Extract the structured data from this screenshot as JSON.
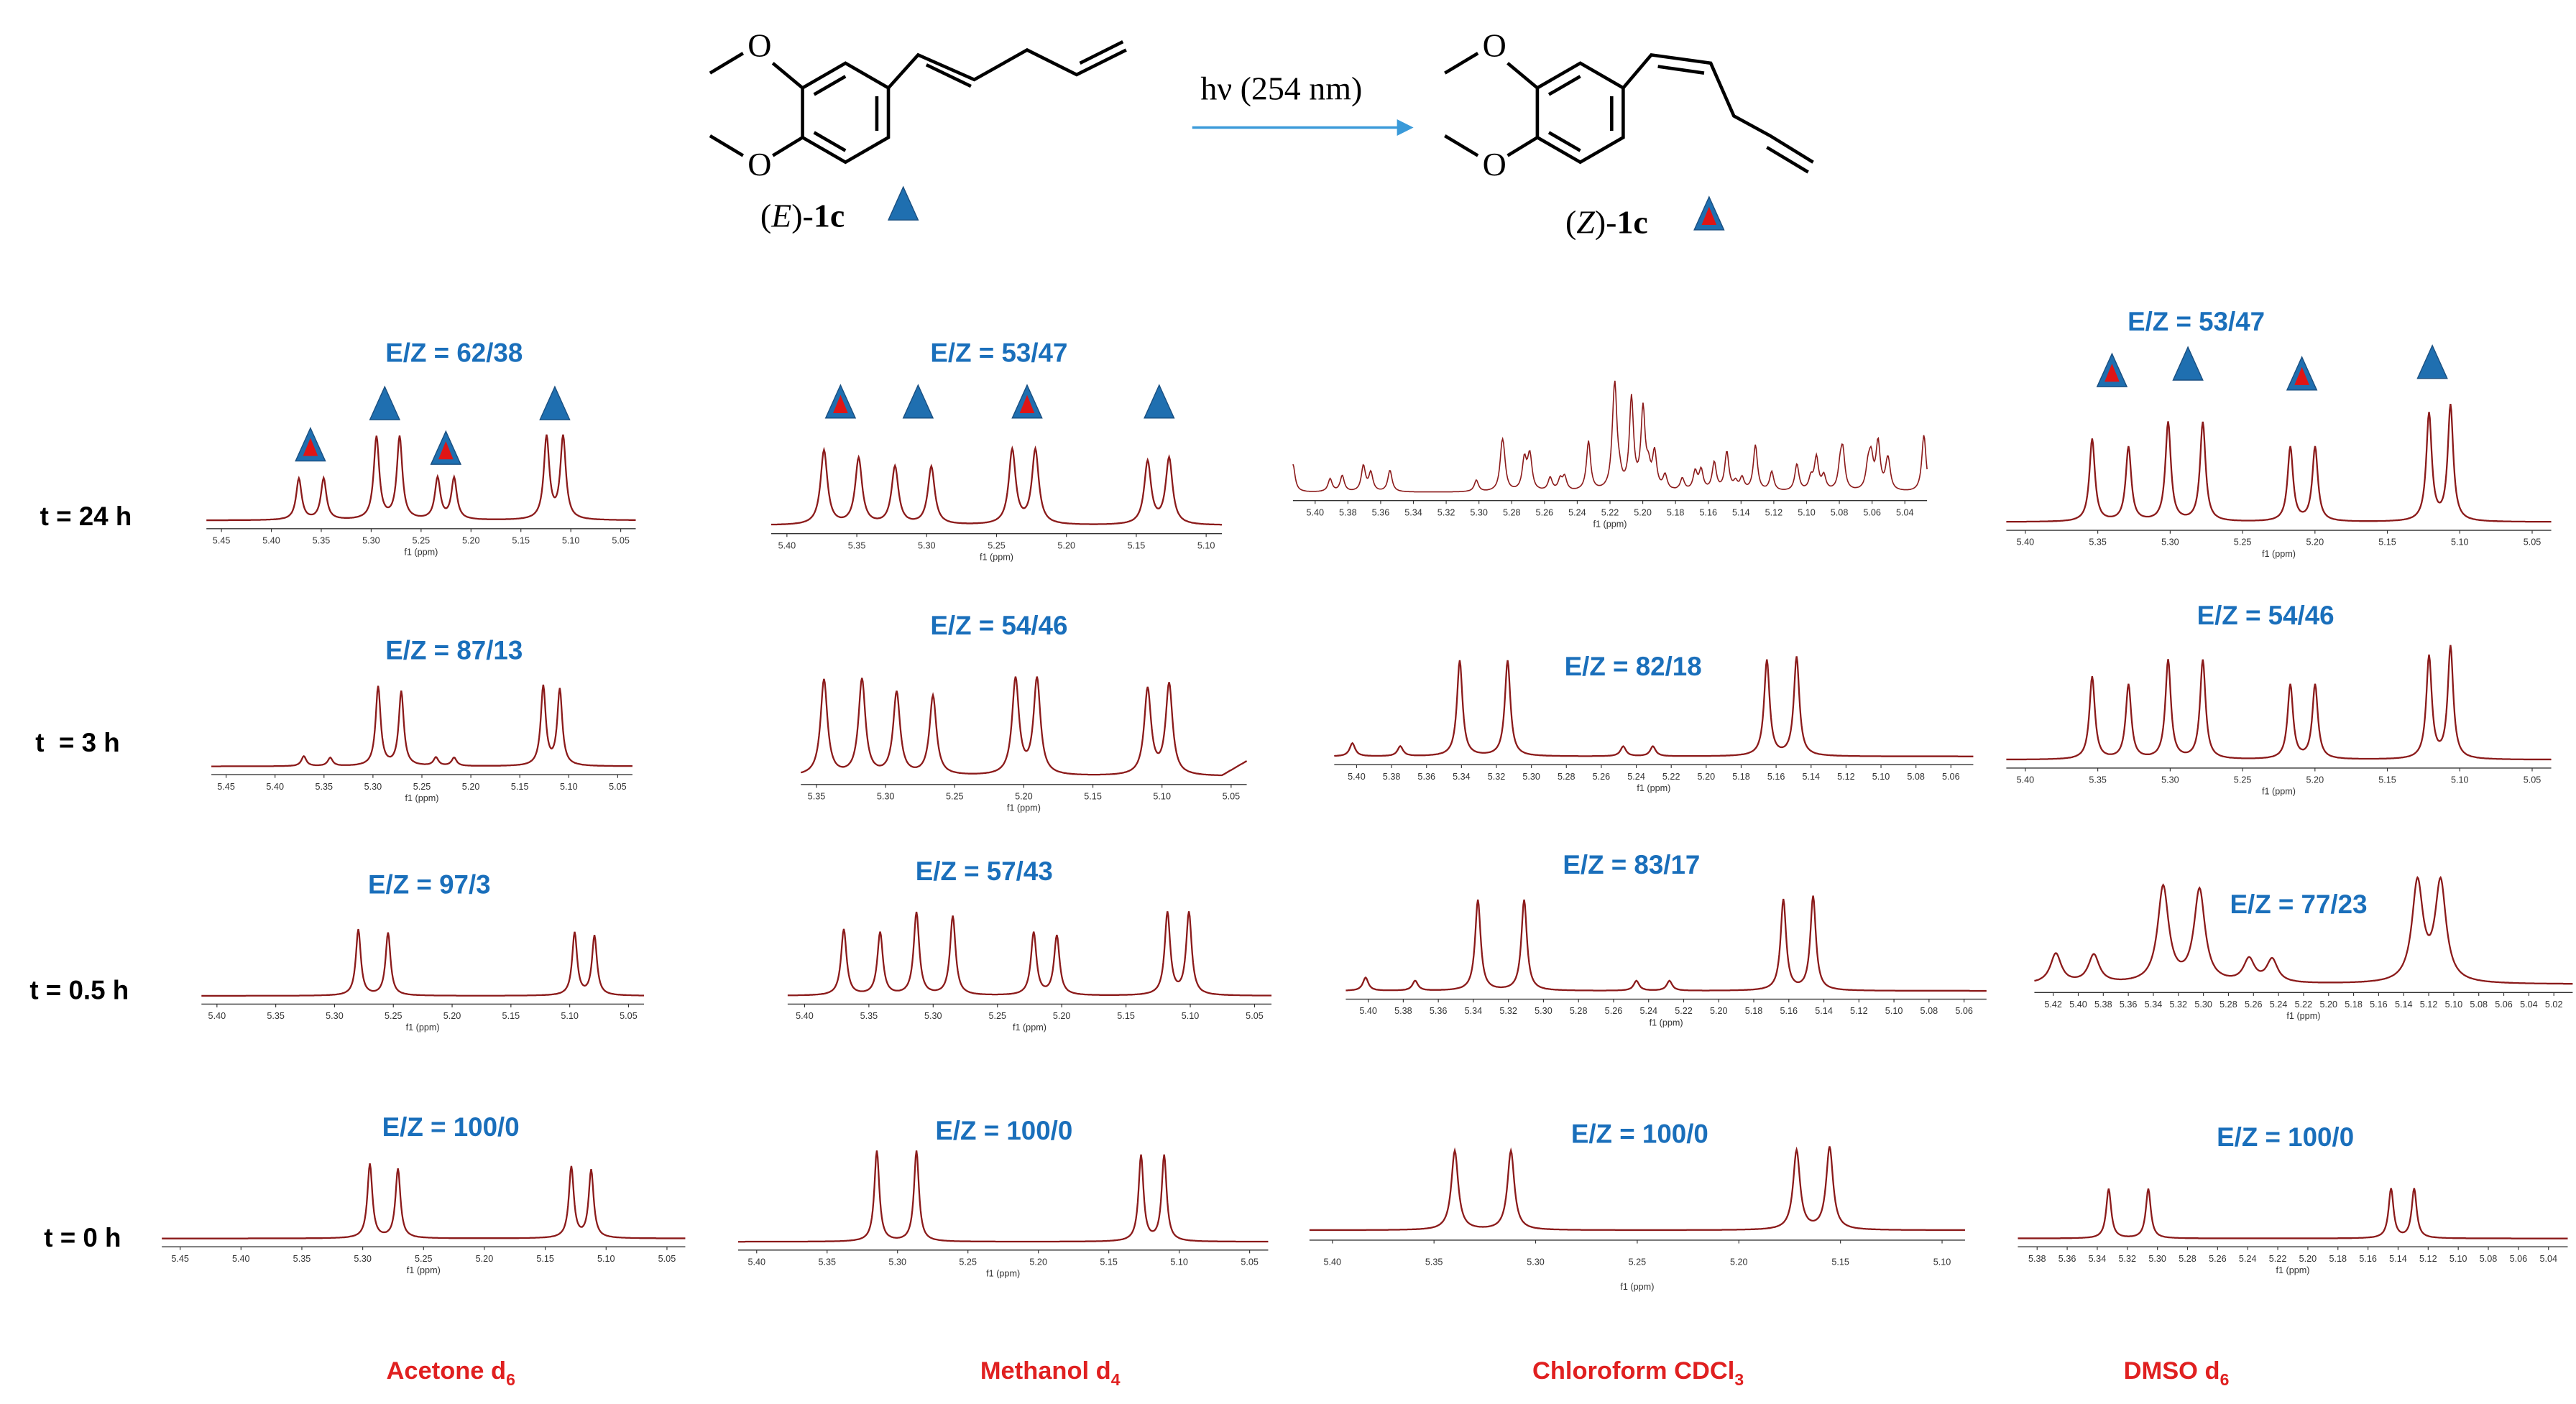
{
  "scheme": {
    "reactant": [
      "(",
      "E",
      ")-",
      "1c"
    ],
    "product": [
      "(",
      "Z",
      ")-",
      "1c"
    ],
    "condition": "hν (254 nm)"
  },
  "rows": [
    "t = 24 h",
    "t  = 3 h",
    "t = 0.5 h",
    "t = 0 h"
  ],
  "solvents": [
    {
      "name": "Acetone d",
      "sub": "6"
    },
    {
      "name": "Methanol d",
      "sub": "4"
    },
    {
      "name": "Chloroform CDCl",
      "sub": "3"
    },
    {
      "name": "DMSO d",
      "sub": "6"
    }
  ],
  "panels": [
    [
      {
        "ratio": "E/Z = 62/38",
        "ticks": [
          "5.45",
          "5.40",
          "5.35",
          "5.30",
          "5.25",
          "5.20",
          "5.15",
          "5.10",
          "5.05"
        ],
        "axis_label": "f1 (ppm)"
      },
      {
        "ratio": "E/Z = 87/13",
        "ticks": [
          "5.45",
          "5.40",
          "5.35",
          "5.30",
          "5.25",
          "5.20",
          "5.15",
          "5.10",
          "5.05"
        ],
        "axis_label": "f1 (ppm)"
      },
      {
        "ratio": "E/Z = 97/3",
        "ticks": [
          "5.40",
          "5.35",
          "5.30",
          "5.25",
          "5.20",
          "5.15",
          "5.10",
          "5.05"
        ],
        "axis_label": "f1 (ppm)"
      },
      {
        "ratio": "E/Z = 100/0",
        "ticks": [
          "5.45",
          "5.40",
          "5.35",
          "5.30",
          "5.25",
          "5.20",
          "5.15",
          "5.10",
          "5.05"
        ],
        "axis_label": "f1 (ppm)"
      }
    ],
    [
      {
        "ratio": "E/Z = 53/47",
        "ticks": [
          "5.40",
          "5.35",
          "5.30",
          "5.25",
          "5.20",
          "5.15",
          "5.10"
        ],
        "axis_label": "f1 (ppm)"
      },
      {
        "ratio": "E/Z = 54/46",
        "ticks": [
          "5.35",
          "5.30",
          "5.25",
          "5.20",
          "5.15",
          "5.10",
          "5.05"
        ],
        "axis_label": "f1 (ppm)"
      },
      {
        "ratio": "E/Z = 57/43",
        "ticks": [
          "5.40",
          "5.35",
          "5.30",
          "5.25",
          "5.20",
          "5.15",
          "5.10",
          "5.05"
        ],
        "axis_label": "f1 (ppm)"
      },
      {
        "ratio": "E/Z = 100/0",
        "ticks": [
          "5.40",
          "5.35",
          "5.30",
          "5.25",
          "5.20",
          "5.15",
          "5.10",
          "5.05"
        ],
        "axis_label": "f1 (ppm)"
      }
    ],
    [
      {
        "ticks": [
          "5.40",
          "5.38",
          "5.36",
          "5.34",
          "5.32",
          "5.30",
          "5.28",
          "5.26",
          "5.24",
          "5.22",
          "5.20",
          "5.18",
          "5.16",
          "5.14",
          "5.12",
          "5.10",
          "5.08",
          "5.06",
          "5.04"
        ],
        "axis_label": "f1 (ppm)"
      },
      {
        "ratio": "E/Z = 82/18",
        "ticks": [
          "5.40",
          "5.38",
          "5.36",
          "5.34",
          "5.32",
          "5.30",
          "5.28",
          "5.26",
          "5.24",
          "5.22",
          "5.20",
          "5.18",
          "5.16",
          "5.14",
          "5.12",
          "5.10",
          "5.08",
          "5.06"
        ],
        "axis_label": "f1 (ppm)"
      },
      {
        "ratio": "E/Z = 83/17",
        "ticks": [
          "5.40",
          "5.38",
          "5.36",
          "5.34",
          "5.32",
          "5.30",
          "5.28",
          "5.26",
          "5.24",
          "5.22",
          "5.20",
          "5.18",
          "5.16",
          "5.14",
          "5.12",
          "5.10",
          "5.08",
          "5.06"
        ],
        "axis_label": "f1 (ppm)"
      },
      {
        "ratio": "E/Z = 100/0",
        "ticks": [
          "5.40",
          "5.35",
          "5.30",
          "5.25",
          "5.20",
          "5.15",
          "5.10"
        ],
        "axis_label": "f1 (ppm)"
      }
    ],
    [
      {
        "ratio": "E/Z = 53/47",
        "ticks": [
          "5.40",
          "5.35",
          "5.30",
          "5.25",
          "5.20",
          "5.15",
          "5.10",
          "5.05"
        ],
        "axis_label": "f1 (ppm)"
      },
      {
        "ratio": "E/Z = 54/46",
        "ticks": [
          "5.40",
          "5.35",
          "5.30",
          "5.25",
          "5.20",
          "5.15",
          "5.10",
          "5.05"
        ],
        "axis_label": "f1 (ppm)"
      },
      {
        "ratio": "E/Z = 77/23",
        "ticks": [
          "5.42",
          "5.40",
          "5.38",
          "5.36",
          "5.34",
          "5.32",
          "5.30",
          "5.28",
          "5.26",
          "5.24",
          "5.22",
          "5.20",
          "5.18",
          "5.16",
          "5.14",
          "5.12",
          "5.10",
          "5.08",
          "5.06",
          "5.04",
          "5.02"
        ],
        "axis_label": "f1 (ppm)"
      },
      {
        "ratio": "E/Z = 100/0",
        "ticks": [
          "5.38",
          "5.36",
          "5.34",
          "5.32",
          "5.30",
          "5.28",
          "5.26",
          "5.24",
          "5.22",
          "5.20",
          "5.18",
          "5.16",
          "5.14",
          "5.12",
          "5.10",
          "5.08",
          "5.06",
          "5.04"
        ],
        "axis_label": "f1 (ppm)"
      }
    ]
  ]
}
